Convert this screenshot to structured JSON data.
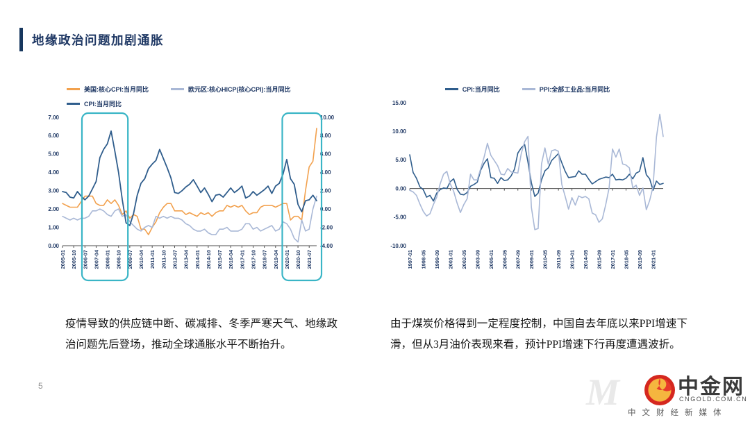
{
  "slide": {
    "title": "地缘政治问题加剧通胀",
    "page_number": "5",
    "left_paragraph": "疫情导致的供应链中断、碳减排、冬季严寒天气、地缘政治问题先后登场，推动全球通胀水平不断抬升。",
    "right_paragraph": "由于煤炭价格得到一定程度控制，中国自去年底以来PPI增速下滑，但从3月油价表现来看，预计PPI增速下行再度遭遇波折。"
  },
  "branding": {
    "watermark_letter": "M",
    "logo_text": "中金网",
    "logo_domain": "CNGOLD.COM.CN",
    "logo_tagline": "中文财经新媒体",
    "logo_red": "#D5281F",
    "logo_red_light": "#E8392B",
    "logo_gold": "#F5B63F"
  },
  "colors": {
    "navy": "#1F3864",
    "accent_bar": "#17375E",
    "orange_line": "#F2A14E",
    "light_blue_line": "#A9B8D6",
    "dark_blue_line": "#2F5D8C",
    "highlight_teal": "#3AB5C6"
  },
  "chart_data": [
    {
      "type": "line",
      "title": "",
      "legend_position": "top",
      "legend_align": "left",
      "legend_layout": [
        [
          0,
          1
        ],
        [
          2
        ]
      ],
      "x_count": 69,
      "x_tick_step": 3,
      "x_tick_labels": [
        "2005-01",
        "2005-10",
        "2006-07",
        "2007-04",
        "2008-01",
        "2008-10",
        "2009-07",
        "2010-04",
        "2011-01",
        "2011-10",
        "2012-07",
        "2013-04",
        "2014-01",
        "2014-10",
        "2015-07",
        "2016-04",
        "2017-01",
        "2017-10",
        "2018-07",
        "2019-04",
        "2020-01",
        "2020-10",
        "2021-07"
      ],
      "left_axis": {
        "min": 0,
        "max": 7,
        "step": 1
      },
      "right_axis": {
        "min": -4,
        "max": 10,
        "step": 2
      },
      "grid": false,
      "highlight_color": "#3AB5C6",
      "highlights": [
        {
          "from_index": 5.2,
          "to_index": 17.5,
          "note": "2007-2008 inflation spike"
        },
        {
          "from_index": 58.8,
          "to_index": 70,
          "note": "2020-2021 inflation spike"
        }
      ],
      "series": [
        {
          "name": "美国:核心CPI:当月同比",
          "color": "#F2A14E",
          "axis": "left",
          "values": [
            2.3,
            2.2,
            2.1,
            2.1,
            2.1,
            2.4,
            2.7,
            2.7,
            2.7,
            2.3,
            2.2,
            2.2,
            2.5,
            2.3,
            2.5,
            2.2,
            1.7,
            1.9,
            1.5,
            1.7,
            1.6,
            0.9,
            0.9,
            0.6,
            1.0,
            1.3,
            1.8,
            2.1,
            2.3,
            2.3,
            1.9,
            1.9,
            1.9,
            1.7,
            1.8,
            1.7,
            1.6,
            1.8,
            1.7,
            1.8,
            1.6,
            1.8,
            1.9,
            1.9,
            2.2,
            2.1,
            2.2,
            2.1,
            2.2,
            1.9,
            1.7,
            1.8,
            1.8,
            2.1,
            2.2,
            2.2,
            2.2,
            2.1,
            2.2,
            2.3,
            2.3,
            1.4,
            1.6,
            1.6,
            1.4,
            3.0,
            4.3,
            4.6,
            6.4
          ]
        },
        {
          "name": "欧元区:核心HICP(核心CPI):当月同比",
          "color": "#A9B8D6",
          "axis": "left",
          "values": [
            1.6,
            1.5,
            1.4,
            1.5,
            1.4,
            1.5,
            1.5,
            1.6,
            1.9,
            1.9,
            2.0,
            1.9,
            1.7,
            1.6,
            1.9,
            2.0,
            1.6,
            1.7,
            1.3,
            1.1,
            0.9,
            0.8,
            1.0,
            1.1,
            1.0,
            1.6,
            1.5,
            1.6,
            1.5,
            1.6,
            1.5,
            1.5,
            1.4,
            1.2,
            1.1,
            0.9,
            0.8,
            0.8,
            0.9,
            0.7,
            0.6,
            0.6,
            0.9,
            0.9,
            1.0,
            0.8,
            0.8,
            0.8,
            0.9,
            1.2,
            1.2,
            0.9,
            1.0,
            0.8,
            0.9,
            1.0,
            1.1,
            0.8,
            0.9,
            1.3,
            1.2,
            0.9,
            0.4,
            0.2,
            1.4,
            0.8,
            0.9,
            2.0,
            2.7
          ]
        },
        {
          "name": "CPI:当月同比",
          "color": "#2F5D8C",
          "axis": "right",
          "values": [
            1.9,
            1.8,
            1.3,
            1.2,
            1.9,
            1.4,
            1.0,
            1.4,
            2.2,
            3.0,
            5.6,
            6.5,
            7.1,
            8.5,
            6.3,
            4.0,
            1.0,
            -1.5,
            -1.8,
            -0.5,
            1.5,
            2.8,
            3.3,
            4.4,
            4.9,
            5.3,
            6.5,
            5.5,
            4.5,
            3.4,
            1.8,
            1.7,
            2.0,
            2.4,
            2.7,
            3.2,
            2.5,
            1.8,
            2.3,
            1.6,
            0.8,
            1.5,
            1.6,
            1.3,
            1.8,
            2.3,
            1.8,
            2.1,
            2.5,
            1.2,
            1.4,
            1.9,
            1.5,
            1.8,
            2.1,
            2.5,
            1.7,
            2.5,
            2.8,
            3.8,
            5.4,
            3.3,
            2.7,
            0.5,
            -0.3,
            0.9,
            1.0,
            1.5,
            0.9
          ]
        }
      ]
    },
    {
      "type": "line",
      "title": "",
      "legend_position": "top",
      "legend_align": "center",
      "legend_layout": [
        [
          0,
          1
        ]
      ],
      "x_count": 76,
      "x_tick_step": 4,
      "x_tick_labels": [
        "1997-01",
        "1998-05",
        "1999-09",
        "2001-01",
        "2002-05",
        "2003-09",
        "2005-01",
        "2006-05",
        "2007-09",
        "2009-01",
        "2010-05",
        "2011-09",
        "2013-01",
        "2014-05",
        "2015-09",
        "2017-01",
        "2018-05",
        "2019-09",
        "2021-01"
      ],
      "left_axis": {
        "min": -10,
        "max": 15,
        "step": 5
      },
      "grid": false,
      "zero_line": true,
      "series": [
        {
          "name": "CPI:当月同比",
          "color": "#2F5D8C",
          "axis": "left",
          "values": [
            5.9,
            2.8,
            1.8,
            0.3,
            -0.2,
            -1.5,
            -1.2,
            -2.2,
            -0.8,
            -0.2,
            0.1,
            0.0,
            1.2,
            1.7,
            -0.1,
            -1.0,
            -1.1,
            -0.7,
            0.4,
            0.7,
            1.1,
            3.2,
            4.4,
            5.2,
            1.9,
            1.8,
            0.9,
            1.9,
            1.4,
            1.5,
            2.2,
            3.4,
            6.2,
            7.1,
            7.7,
            4.6,
            1.0,
            -1.4,
            -0.8,
            1.5,
            3.1,
            3.6,
            4.9,
            5.5,
            6.1,
            4.5,
            3.0,
            1.9,
            2.0,
            2.1,
            3.1,
            2.5,
            2.5,
            1.6,
            0.8,
            1.2,
            1.6,
            1.8,
            2.0,
            1.9,
            2.5,
            1.5,
            1.6,
            1.5,
            1.8,
            2.5,
            1.7,
            2.7,
            3.0,
            5.4,
            2.4,
            1.7,
            -0.3,
            1.3,
            0.7,
            0.9
          ]
        },
        {
          "name": "PPI:全部工业品:当月同比",
          "color": "#A9B8D6",
          "axis": "left",
          "values": [
            -0.3,
            -0.6,
            -1.2,
            -2.7,
            -4.0,
            -4.8,
            -4.4,
            -2.8,
            -1.5,
            0.8,
            2.5,
            3.0,
            0.8,
            -0.5,
            -2.5,
            -4.2,
            -2.8,
            -1.8,
            2.5,
            1.5,
            1.5,
            3.5,
            5.5,
            7.9,
            5.8,
            4.9,
            4.0,
            2.5,
            2.4,
            3.5,
            2.9,
            2.8,
            2.7,
            6.1,
            8.2,
            9.1,
            -3.3,
            -7.2,
            -7.0,
            4.3,
            7.1,
            4.3,
            6.6,
            6.8,
            6.5,
            0.7,
            -1.4,
            -3.6,
            -1.6,
            -2.9,
            -1.3,
            -1.6,
            -1.4,
            -1.8,
            -4.3,
            -4.6,
            -5.9,
            -5.3,
            -2.8,
            0.1,
            6.9,
            5.5,
            6.9,
            4.3,
            4.1,
            3.6,
            0.1,
            0.6,
            -1.2,
            0.1,
            -3.7,
            -2.1,
            0.3,
            9.0,
            13.0,
            9.1
          ]
        }
      ]
    }
  ]
}
